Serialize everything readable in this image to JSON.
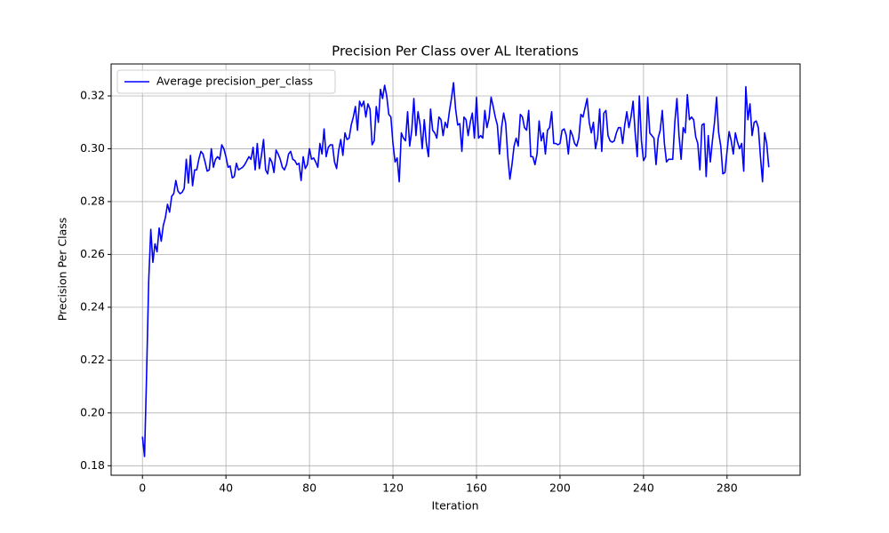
{
  "chart_data": {
    "type": "line",
    "title": "Precision Per Class over AL Iterations",
    "xlabel": "Iteration",
    "ylabel": "Precision Per Class",
    "legend": "upper left",
    "grid": true,
    "xlim": [
      -15,
      315
    ],
    "ylim": [
      0.1764,
      0.3321
    ],
    "xticks": [
      0,
      40,
      80,
      120,
      160,
      200,
      240,
      280
    ],
    "yticks": [
      0.18,
      {
        "value": 0.2,
        "label": "0.20"
      },
      0.22,
      0.24,
      0.26,
      0.28,
      {
        "value": 0.3,
        "label": "0.30"
      },
      0.32
    ],
    "x": [
      0,
      1,
      2,
      3,
      4,
      5,
      6,
      7,
      8,
      9,
      10,
      11,
      12,
      13,
      14,
      15,
      16,
      17,
      18,
      19,
      20,
      21,
      22,
      23,
      24,
      25,
      26,
      27,
      28,
      29,
      30,
      31,
      32,
      33,
      34,
      35,
      36,
      37,
      38,
      39,
      40,
      41,
      42,
      43,
      44,
      45,
      46,
      47,
      48,
      49,
      50,
      51,
      52,
      53,
      54,
      55,
      56,
      57,
      58,
      59,
      60,
      61,
      62,
      63,
      64,
      65,
      66,
      67,
      68,
      69,
      70,
      71,
      72,
      73,
      74,
      75,
      76,
      77,
      78,
      79,
      80,
      81,
      82,
      83,
      84,
      85,
      86,
      87,
      88,
      89,
      90,
      91,
      92,
      93,
      94,
      95,
      96,
      97,
      98,
      99,
      100,
      101,
      102,
      103,
      104,
      105,
      106,
      107,
      108,
      109,
      110,
      111,
      112,
      113,
      114,
      115,
      116,
      117,
      118,
      119,
      120,
      121,
      122,
      123,
      124,
      125,
      126,
      127,
      128,
      129,
      130,
      131,
      132,
      133,
      134,
      135,
      136,
      137,
      138,
      139,
      140,
      141,
      142,
      143,
      144,
      145,
      146,
      147,
      148,
      149,
      150,
      151,
      152,
      153,
      154,
      155,
      156,
      157,
      158,
      159,
      160,
      161,
      162,
      163,
      164,
      165,
      166,
      167,
      168,
      169,
      170,
      171,
      172,
      173,
      174,
      175,
      176,
      177,
      178,
      179,
      180,
      181,
      182,
      183,
      184,
      185,
      186,
      187,
      188,
      189,
      190,
      191,
      192,
      193,
      194,
      195,
      196,
      197,
      198,
      199,
      200,
      201,
      202,
      203,
      204,
      205,
      206,
      207,
      208,
      209,
      210,
      211,
      212,
      213,
      214,
      215,
      216,
      217,
      218,
      219,
      220,
      221,
      222,
      223,
      224,
      225,
      226,
      227,
      228,
      229,
      230,
      231,
      232,
      233,
      234,
      235,
      236,
      237,
      238,
      239,
      240,
      241,
      242,
      243,
      244,
      245,
      246,
      247,
      248,
      249,
      250,
      251,
      252,
      253,
      254,
      255,
      256,
      257,
      258,
      259,
      260,
      261,
      262,
      263,
      264,
      265,
      266,
      267,
      268,
      269,
      270,
      271,
      272,
      273,
      274,
      275,
      276,
      277,
      278,
      279,
      280,
      281,
      282,
      283,
      284,
      285,
      286,
      287,
      288,
      289,
      290,
      291,
      292,
      293,
      294,
      295,
      296,
      297,
      298,
      299,
      300
    ],
    "series": [
      {
        "name": "Average precision_per_class",
        "color": "#0000ff",
        "values": [
          0.191,
          0.1835,
          0.215,
          0.25,
          0.2695,
          0.257,
          0.264,
          0.261,
          0.27,
          0.265,
          0.271,
          0.274,
          0.279,
          0.276,
          0.282,
          0.283,
          0.288,
          0.284,
          0.283,
          0.2835,
          0.285,
          0.296,
          0.287,
          0.2975,
          0.286,
          0.292,
          0.292,
          0.296,
          0.299,
          0.298,
          0.295,
          0.2915,
          0.292,
          0.3,
          0.293,
          0.296,
          0.297,
          0.296,
          0.3015,
          0.3,
          0.297,
          0.293,
          0.2935,
          0.289,
          0.2895,
          0.2945,
          0.292,
          0.2925,
          0.293,
          0.294,
          0.2955,
          0.297,
          0.296,
          0.3005,
          0.292,
          0.302,
          0.2925,
          0.2975,
          0.3035,
          0.292,
          0.2905,
          0.2965,
          0.295,
          0.291,
          0.2995,
          0.298,
          0.296,
          0.293,
          0.292,
          0.294,
          0.298,
          0.299,
          0.296,
          0.2955,
          0.294,
          0.2945,
          0.288,
          0.297,
          0.2925,
          0.294,
          0.3,
          0.296,
          0.2965,
          0.295,
          0.293,
          0.302,
          0.298,
          0.3075,
          0.297,
          0.3005,
          0.3015,
          0.3015,
          0.295,
          0.2925,
          0.2995,
          0.3035,
          0.2975,
          0.306,
          0.3035,
          0.304,
          0.309,
          0.312,
          0.316,
          0.307,
          0.318,
          0.316,
          0.318,
          0.312,
          0.317,
          0.315,
          0.3015,
          0.303,
          0.316,
          0.31,
          0.3225,
          0.319,
          0.324,
          0.32,
          0.313,
          0.312,
          0.302,
          0.295,
          0.2965,
          0.2875,
          0.306,
          0.304,
          0.303,
          0.314,
          0.301,
          0.307,
          0.319,
          0.305,
          0.314,
          0.309,
          0.3,
          0.311,
          0.302,
          0.297,
          0.315,
          0.307,
          0.306,
          0.304,
          0.312,
          0.311,
          0.305,
          0.31,
          0.308,
          0.314,
          0.319,
          0.325,
          0.315,
          0.309,
          0.3095,
          0.299,
          0.312,
          0.311,
          0.305,
          0.31,
          0.3135,
          0.304,
          0.3195,
          0.304,
          0.305,
          0.304,
          0.3145,
          0.308,
          0.3115,
          0.3195,
          0.316,
          0.312,
          0.309,
          0.298,
          0.308,
          0.3135,
          0.3095,
          0.297,
          0.2885,
          0.294,
          0.301,
          0.304,
          0.301,
          0.313,
          0.312,
          0.308,
          0.307,
          0.3145,
          0.297,
          0.297,
          0.294,
          0.298,
          0.3105,
          0.303,
          0.306,
          0.298,
          0.307,
          0.308,
          0.314,
          0.302,
          0.302,
          0.3015,
          0.302,
          0.307,
          0.3075,
          0.305,
          0.298,
          0.307,
          0.305,
          0.302,
          0.301,
          0.304,
          0.313,
          0.312,
          0.3155,
          0.319,
          0.31,
          0.306,
          0.31,
          0.3,
          0.304,
          0.315,
          0.299,
          0.3135,
          0.3145,
          0.305,
          0.303,
          0.3025,
          0.303,
          0.306,
          0.308,
          0.308,
          0.302,
          0.309,
          0.314,
          0.308,
          0.312,
          0.318,
          0.306,
          0.297,
          0.32,
          0.303,
          0.2955,
          0.297,
          0.3195,
          0.306,
          0.305,
          0.304,
          0.294,
          0.304,
          0.307,
          0.3145,
          0.302,
          0.295,
          0.296,
          0.296,
          0.296,
          0.31,
          0.319,
          0.305,
          0.296,
          0.308,
          0.306,
          0.3205,
          0.311,
          0.312,
          0.311,
          0.3045,
          0.302,
          0.292,
          0.309,
          0.3095,
          0.2895,
          0.305,
          0.295,
          0.303,
          0.31,
          0.3195,
          0.306,
          0.301,
          0.2905,
          0.291,
          0.299,
          0.3065,
          0.303,
          0.298,
          0.306,
          0.3025,
          0.3,
          0.302,
          0.2915,
          0.3235,
          0.311,
          0.317,
          0.305,
          0.31,
          0.3105,
          0.308,
          0.297,
          0.2875,
          0.306,
          0.302,
          0.293
        ]
      }
    ]
  }
}
